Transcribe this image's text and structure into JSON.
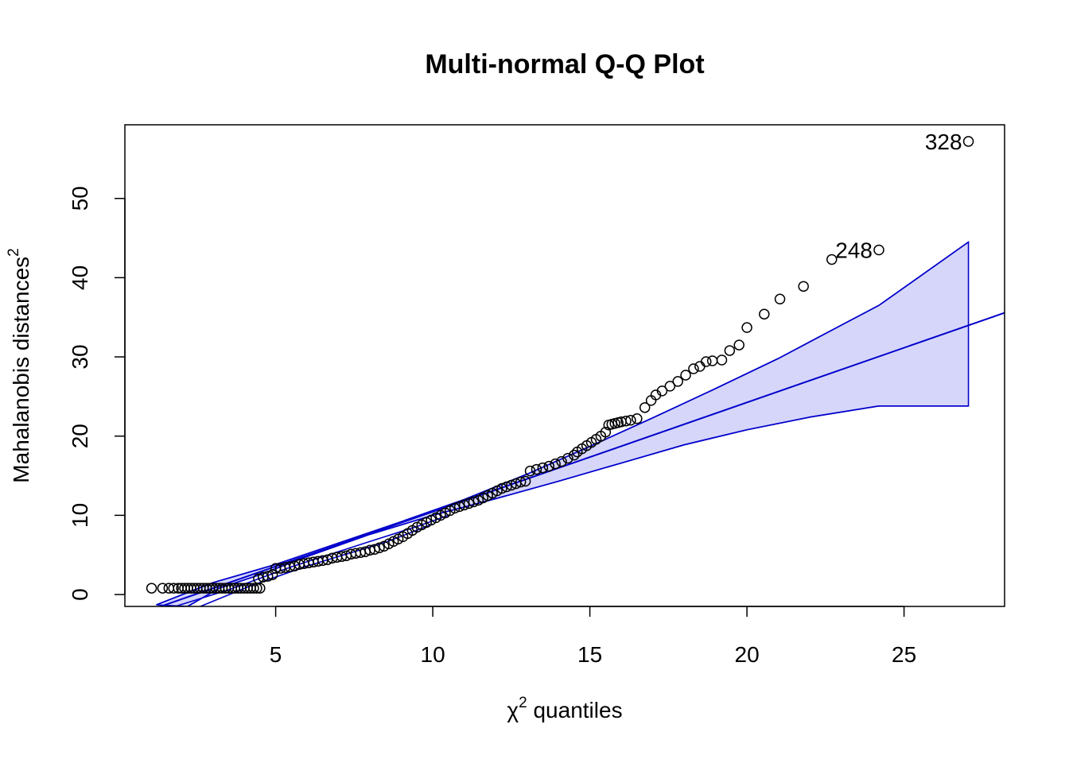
{
  "chart_data": {
    "type": "scatter",
    "title": "Multi-normal Q-Q Plot",
    "xlabel": {
      "symbol": "χ",
      "superscript": "2",
      "text": " quantiles"
    },
    "ylabel": {
      "text": "Mahalanobis distances",
      "superscript": "2"
    },
    "xlim": [
      0.2,
      28.2
    ],
    "ylim": [
      -1.5,
      59.3
    ],
    "x_ticks": [
      5,
      10,
      15,
      20,
      25
    ],
    "y_ticks": [
      0,
      10,
      20,
      30,
      40,
      50
    ],
    "x_tick_labels": [
      "5",
      "10",
      "15",
      "20",
      "25"
    ],
    "y_tick_labels": [
      "0",
      "10",
      "20",
      "30",
      "40",
      "50"
    ],
    "grid": false,
    "colors": {
      "points": "#000000",
      "line": "#0000cc",
      "band_fill": "#d6d6fa",
      "frame": "#000000"
    },
    "reference_line": {
      "intercept": -3.35,
      "slope": 1.38
    },
    "band_upper": [
      [
        1.2,
        -1.3
      ],
      [
        3.0,
        1.5
      ],
      [
        5.0,
        3.8
      ],
      [
        7.0,
        6.5
      ],
      [
        9.0,
        9.2
      ],
      [
        11.0,
        12.0
      ],
      [
        13.0,
        15.2
      ],
      [
        15.0,
        18.7
      ],
      [
        17.0,
        22.3
      ],
      [
        19.0,
        26.0
      ],
      [
        21.0,
        29.8
      ],
      [
        23.0,
        34.0
      ],
      [
        24.2,
        36.5
      ],
      [
        27.05,
        44.5
      ]
    ],
    "band_lower": [
      [
        27.05,
        23.8
      ],
      [
        24.2,
        23.8
      ],
      [
        22.0,
        22.4
      ],
      [
        20.0,
        20.8
      ],
      [
        18.0,
        18.9
      ],
      [
        16.0,
        16.6
      ],
      [
        14.0,
        14.3
      ],
      [
        12.0,
        12.1
      ],
      [
        10.0,
        10.0
      ],
      [
        8.0,
        7.6
      ],
      [
        6.0,
        4.8
      ],
      [
        4.5,
        2.5
      ],
      [
        3.2,
        0.8
      ],
      [
        2.2,
        -1.5
      ]
    ],
    "band_lines": [
      [
        [
          1.2,
          -1.3
        ],
        [
          3.0,
          1.5
        ],
        [
          5.0,
          3.8
        ],
        [
          7.0,
          6.5
        ],
        [
          9.0,
          9.2
        ],
        [
          11.0,
          12.0
        ],
        [
          13.0,
          15.2
        ],
        [
          15.0,
          18.7
        ],
        [
          17.0,
          22.3
        ],
        [
          19.0,
          26.0
        ],
        [
          21.0,
          29.8
        ],
        [
          23.0,
          34.0
        ],
        [
          24.2,
          36.5
        ],
        [
          27.05,
          44.5
        ]
      ],
      [
        [
          2.2,
          -1.5
        ],
        [
          3.2,
          0.8
        ],
        [
          4.5,
          2.5
        ],
        [
          6.0,
          4.8
        ],
        [
          8.0,
          7.6
        ],
        [
          10.0,
          10.0
        ],
        [
          12.0,
          12.1
        ],
        [
          14.0,
          14.3
        ],
        [
          16.0,
          16.6
        ],
        [
          18.0,
          18.9
        ],
        [
          20.0,
          20.8
        ],
        [
          22.0,
          22.4
        ],
        [
          24.2,
          23.8
        ],
        [
          27.05,
          23.8
        ]
      ],
      [
        [
          1.8,
          -1.5
        ],
        [
          3.5,
          0.6
        ],
        [
          5.5,
          3.5
        ],
        [
          8.0,
          6.7
        ],
        [
          9.5,
          8.6
        ],
        [
          10.5,
          10.0
        ]
      ],
      [
        [
          2.6,
          -1.5
        ],
        [
          4.2,
          1.1
        ],
        [
          6.0,
          3.6
        ],
        [
          8.5,
          6.6
        ],
        [
          10.0,
          8.9
        ]
      ]
    ],
    "points": [
      [
        1.05,
        0.8
      ],
      [
        1.4,
        0.8
      ],
      [
        1.6,
        0.8
      ],
      [
        1.75,
        0.8
      ],
      [
        1.9,
        0.8
      ],
      [
        2.0,
        0.8
      ],
      [
        2.1,
        0.8
      ],
      [
        2.2,
        0.8
      ],
      [
        2.3,
        0.8
      ],
      [
        2.4,
        0.8
      ],
      [
        2.5,
        0.8
      ],
      [
        2.6,
        0.8
      ],
      [
        2.7,
        0.8
      ],
      [
        2.8,
        0.8
      ],
      [
        2.9,
        0.8
      ],
      [
        3.0,
        0.8
      ],
      [
        3.1,
        0.8
      ],
      [
        3.2,
        0.8
      ],
      [
        3.3,
        0.8
      ],
      [
        3.4,
        0.8
      ],
      [
        3.5,
        0.8
      ],
      [
        3.6,
        0.8
      ],
      [
        3.7,
        0.8
      ],
      [
        3.8,
        0.8
      ],
      [
        3.9,
        0.8
      ],
      [
        4.0,
        0.8
      ],
      [
        4.1,
        0.8
      ],
      [
        4.2,
        0.8
      ],
      [
        4.3,
        0.8
      ],
      [
        4.4,
        0.8
      ],
      [
        4.5,
        0.8
      ],
      [
        4.45,
        2.0
      ],
      [
        4.6,
        2.2
      ],
      [
        4.75,
        2.3
      ],
      [
        4.9,
        2.5
      ],
      [
        5.0,
        3.3
      ],
      [
        5.15,
        3.3
      ],
      [
        5.3,
        3.4
      ],
      [
        5.45,
        3.5
      ],
      [
        5.6,
        3.6
      ],
      [
        5.75,
        3.8
      ],
      [
        5.9,
        3.9
      ],
      [
        6.05,
        4.0
      ],
      [
        6.2,
        4.1
      ],
      [
        6.35,
        4.2
      ],
      [
        6.5,
        4.3
      ],
      [
        6.65,
        4.4
      ],
      [
        6.8,
        4.6
      ],
      [
        6.95,
        4.7
      ],
      [
        7.1,
        4.8
      ],
      [
        7.25,
        4.9
      ],
      [
        7.4,
        5.1
      ],
      [
        7.55,
        5.2
      ],
      [
        7.7,
        5.3
      ],
      [
        7.85,
        5.4
      ],
      [
        8.0,
        5.6
      ],
      [
        8.15,
        5.7
      ],
      [
        8.3,
        5.9
      ],
      [
        8.45,
        6.1
      ],
      [
        8.6,
        6.4
      ],
      [
        8.75,
        6.7
      ],
      [
        8.9,
        7.0
      ],
      [
        9.05,
        7.3
      ],
      [
        9.2,
        7.7
      ],
      [
        9.35,
        8.1
      ],
      [
        9.5,
        8.5
      ],
      [
        9.65,
        8.8
      ],
      [
        9.8,
        9.1
      ],
      [
        9.95,
        9.4
      ],
      [
        10.1,
        9.7
      ],
      [
        10.25,
        10.0
      ],
      [
        10.4,
        10.3
      ],
      [
        10.55,
        10.6
      ],
      [
        10.7,
        10.9
      ],
      [
        10.85,
        11.1
      ],
      [
        11.0,
        11.3
      ],
      [
        11.15,
        11.5
      ],
      [
        11.3,
        11.7
      ],
      [
        11.45,
        11.9
      ],
      [
        11.6,
        12.2
      ],
      [
        11.75,
        12.5
      ],
      [
        11.9,
        12.8
      ],
      [
        12.05,
        13.1
      ],
      [
        12.2,
        13.4
      ],
      [
        12.35,
        13.6
      ],
      [
        12.5,
        13.8
      ],
      [
        12.65,
        14.0
      ],
      [
        12.8,
        14.2
      ],
      [
        12.95,
        14.3
      ],
      [
        13.1,
        15.6
      ],
      [
        13.3,
        15.8
      ],
      [
        13.5,
        16.0
      ],
      [
        13.7,
        16.2
      ],
      [
        13.9,
        16.5
      ],
      [
        14.1,
        16.8
      ],
      [
        14.3,
        17.2
      ],
      [
        14.5,
        17.6
      ],
      [
        14.6,
        18.0
      ],
      [
        14.75,
        18.4
      ],
      [
        14.9,
        18.8
      ],
      [
        15.05,
        19.2
      ],
      [
        15.2,
        19.6
      ],
      [
        15.35,
        20.0
      ],
      [
        15.5,
        20.5
      ],
      [
        15.6,
        21.4
      ],
      [
        15.7,
        21.5
      ],
      [
        15.8,
        21.6
      ],
      [
        15.9,
        21.7
      ],
      [
        16.0,
        21.8
      ],
      [
        16.15,
        21.9
      ],
      [
        16.3,
        22.0
      ],
      [
        16.5,
        22.2
      ],
      [
        16.75,
        23.6
      ],
      [
        16.95,
        24.5
      ],
      [
        17.1,
        25.2
      ],
      [
        17.3,
        25.7
      ],
      [
        17.55,
        26.3
      ],
      [
        17.8,
        26.9
      ],
      [
        18.05,
        27.7
      ],
      [
        18.3,
        28.5
      ],
      [
        18.5,
        28.8
      ],
      [
        18.7,
        29.4
      ],
      [
        18.9,
        29.5
      ],
      [
        19.2,
        29.6
      ],
      [
        19.45,
        30.8
      ],
      [
        19.75,
        31.5
      ],
      [
        20.0,
        33.7
      ],
      [
        20.55,
        35.4
      ],
      [
        21.05,
        37.3
      ],
      [
        21.8,
        38.9
      ],
      [
        22.7,
        42.3
      ],
      [
        24.2,
        43.5
      ],
      [
        27.05,
        57.2
      ]
    ],
    "annotations": [
      {
        "text": "328",
        "x": 27.05,
        "y": 57.2
      },
      {
        "text": "248",
        "x": 24.2,
        "y": 43.5
      }
    ]
  }
}
